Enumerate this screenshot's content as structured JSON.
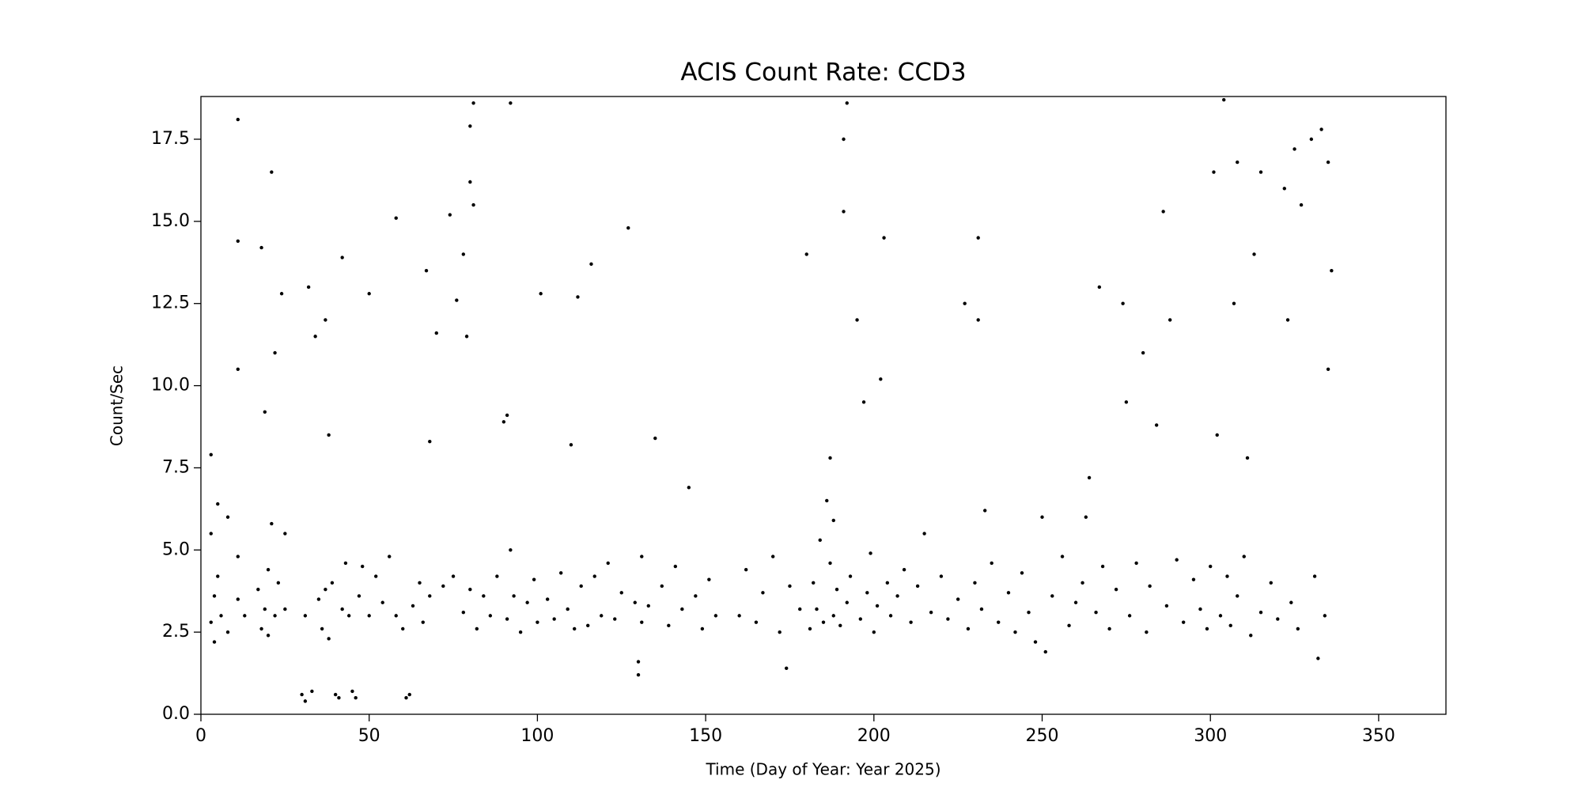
{
  "chart_data": {
    "type": "scatter",
    "title": "ACIS Count Rate: CCD3",
    "x_label": "Time (Day of Year: Year 2025)",
    "y_label": "Count/Sec",
    "color": "#000000",
    "xlim": [
      0,
      370
    ],
    "ylim": [
      0,
      18.8
    ],
    "xticks": [
      0,
      50,
      100,
      150,
      200,
      250,
      300,
      350
    ],
    "yticks": [
      {
        "value": 0,
        "label": "0.0"
      },
      2.5,
      {
        "value": 5,
        "label": "5.0"
      },
      7.5,
      {
        "value": 10,
        "label": "10.0"
      },
      12.5,
      {
        "value": 15,
        "label": "15.0"
      },
      17.5
    ],
    "x": [
      3,
      3,
      3,
      4,
      4,
      5,
      5,
      6,
      8,
      8,
      11,
      11,
      11,
      11,
      11,
      13,
      17,
      18,
      18,
      19,
      19,
      20,
      20,
      21,
      21,
      22,
      22,
      23,
      24,
      25,
      25,
      30,
      31,
      31,
      32,
      33,
      34,
      35,
      36,
      37,
      37,
      38,
      38,
      39,
      40,
      41,
      42,
      42,
      43,
      44,
      45,
      46,
      47,
      48,
      50,
      50,
      52,
      54,
      56,
      58,
      58,
      60,
      61,
      62,
      63,
      65,
      66,
      67,
      68,
      68,
      70,
      72,
      74,
      75,
      76,
      78,
      78,
      79,
      80,
      80,
      80,
      81,
      81,
      82,
      84,
      86,
      88,
      90,
      91,
      91,
      92,
      92,
      93,
      95,
      97,
      99,
      100,
      101,
      103,
      105,
      107,
      109,
      110,
      111,
      112,
      113,
      115,
      116,
      117,
      119,
      121,
      123,
      125,
      127,
      129,
      130,
      130,
      131,
      131,
      133,
      135,
      137,
      139,
      141,
      143,
      145,
      147,
      149,
      151,
      153,
      160,
      162,
      165,
      167,
      170,
      172,
      174,
      175,
      178,
      180,
      181,
      182,
      183,
      184,
      185,
      186,
      187,
      187,
      188,
      188,
      189,
      190,
      191,
      191,
      192,
      192,
      193,
      195,
      196,
      197,
      198,
      199,
      200,
      201,
      202,
      203,
      204,
      205,
      207,
      209,
      211,
      213,
      215,
      217,
      220,
      222,
      225,
      227,
      228,
      230,
      231,
      231,
      232,
      233,
      235,
      237,
      240,
      242,
      244,
      246,
      248,
      250,
      251,
      253,
      256,
      258,
      260,
      262,
      263,
      264,
      266,
      267,
      268,
      270,
      272,
      274,
      275,
      276,
      278,
      280,
      281,
      282,
      284,
      286,
      287,
      288,
      290,
      292,
      295,
      297,
      299,
      300,
      301,
      302,
      303,
      304,
      305,
      306,
      307,
      308,
      308,
      310,
      311,
      312,
      313,
      315,
      315,
      318,
      320,
      322,
      323,
      324,
      325,
      326,
      327,
      330,
      331,
      332,
      333,
      334,
      335,
      335,
      336
    ],
    "values": [
      5.5,
      2.8,
      7.9,
      3.6,
      2.2,
      4.2,
      6.4,
      3.0,
      2.5,
      6.0,
      3.5,
      10.5,
      14.4,
      18.1,
      4.8,
      3.0,
      3.8,
      2.6,
      14.2,
      3.2,
      9.2,
      4.4,
      2.4,
      5.8,
      16.5,
      3.0,
      11.0,
      4.0,
      12.8,
      5.5,
      3.2,
      0.6,
      0.4,
      3.0,
      13.0,
      0.7,
      11.5,
      3.5,
      2.6,
      12.0,
      3.8,
      8.5,
      2.3,
      4.0,
      0.6,
      0.5,
      13.9,
      3.2,
      4.6,
      3.0,
      0.7,
      0.5,
      3.6,
      4.5,
      12.8,
      3.0,
      4.2,
      3.4,
      4.8,
      15.1,
      3.0,
      2.6,
      0.5,
      0.6,
      3.3,
      4.0,
      2.8,
      13.5,
      3.6,
      8.3,
      11.6,
      3.9,
      15.2,
      4.2,
      12.6,
      14.0,
      3.1,
      11.5,
      17.9,
      16.2,
      3.8,
      18.6,
      15.5,
      2.6,
      3.6,
      3.0,
      4.2,
      8.9,
      9.1,
      2.9,
      5.0,
      18.6,
      3.6,
      2.5,
      3.4,
      4.1,
      2.8,
      12.8,
      3.5,
      2.9,
      4.3,
      3.2,
      8.2,
      2.6,
      12.7,
      3.9,
      2.7,
      13.7,
      4.2,
      3.0,
      4.6,
      2.9,
      3.7,
      14.8,
      3.4,
      1.2,
      1.6,
      4.8,
      2.8,
      3.3,
      8.4,
      3.9,
      2.7,
      4.5,
      3.2,
      6.9,
      3.6,
      2.6,
      4.1,
      3.0,
      3.0,
      4.4,
      2.8,
      3.7,
      4.8,
      2.5,
      1.4,
      3.9,
      3.2,
      14.0,
      2.6,
      4.0,
      3.2,
      5.3,
      2.8,
      6.5,
      7.8,
      4.6,
      3.0,
      5.9,
      3.8,
      2.7,
      17.5,
      15.3,
      18.6,
      3.4,
      4.2,
      12.0,
      2.9,
      9.5,
      3.7,
      4.9,
      2.5,
      3.3,
      10.2,
      14.5,
      4.0,
      3.0,
      3.6,
      4.4,
      2.8,
      3.9,
      5.5,
      3.1,
      4.2,
      2.9,
      3.5,
      12.5,
      2.6,
      4.0,
      14.5,
      12.0,
      3.2,
      6.2,
      4.6,
      2.8,
      3.7,
      2.5,
      4.3,
      3.1,
      2.2,
      6.0,
      1.9,
      3.6,
      4.8,
      2.7,
      3.4,
      4.0,
      6.0,
      7.2,
      3.1,
      13.0,
      4.5,
      2.6,
      3.8,
      12.5,
      9.5,
      3.0,
      4.6,
      11.0,
      2.5,
      3.9,
      8.8,
      15.3,
      3.3,
      12.0,
      4.7,
      2.8,
      4.1,
      3.2,
      2.6,
      4.5,
      16.5,
      8.5,
      3.0,
      18.7,
      4.2,
      2.7,
      12.5,
      16.8,
      3.6,
      4.8,
      7.8,
      2.4,
      14.0,
      16.5,
      3.1,
      4.0,
      2.9,
      16.0,
      12.0,
      3.4,
      17.2,
      2.6,
      15.5,
      17.5,
      4.2,
      1.7,
      17.8,
      3.0,
      16.8,
      10.5,
      13.5
    ]
  }
}
